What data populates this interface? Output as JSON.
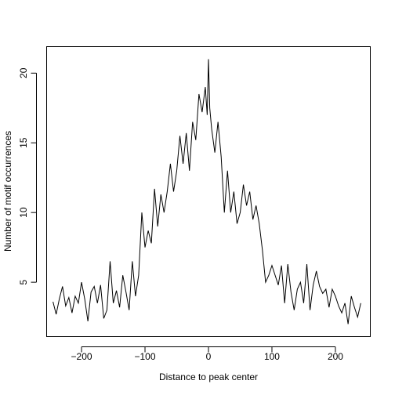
{
  "chart_data": {
    "type": "line",
    "xlabel": "Distance to peak center",
    "ylabel": "Number of motif occurrences",
    "xlim": [
      -255,
      255
    ],
    "ylim": [
      1.1,
      21.9
    ],
    "xticks": [
      -200,
      -100,
      0,
      100,
      200
    ],
    "yticks": [
      5,
      10,
      15,
      20
    ],
    "grid": false,
    "series": [
      {
        "x": [
          -245,
          -240,
          -235,
          -230,
          -225,
          -220,
          -215,
          -210,
          -205,
          -200,
          -195,
          -190,
          -185,
          -180,
          -175,
          -170,
          -165,
          -160,
          -155,
          -150,
          -145,
          -140,
          -135,
          -130,
          -125,
          -120,
          -115,
          -110,
          -105,
          -100,
          -95,
          -90,
          -85,
          -80,
          -75,
          -70,
          -65,
          -60,
          -55,
          -50,
          -45,
          -40,
          -35,
          -30,
          -25,
          -20,
          -15,
          -10,
          -5,
          -2,
          0,
          2,
          5,
          10,
          15,
          20,
          25,
          30,
          35,
          40,
          45,
          50,
          55,
          60,
          65,
          70,
          75,
          80,
          85,
          90,
          95,
          100,
          105,
          110,
          115,
          120,
          125,
          130,
          135,
          140,
          145,
          150,
          155,
          160,
          165,
          170,
          175,
          180,
          185,
          190,
          195,
          200,
          205,
          210,
          215,
          220,
          225,
          230,
          235,
          240
        ],
        "y": [
          3.6,
          2.7,
          3.8,
          4.7,
          3.3,
          3.9,
          2.8,
          4.0,
          3.5,
          5.0,
          3.8,
          2.2,
          4.3,
          4.7,
          3.5,
          4.8,
          2.4,
          3.0,
          6.5,
          3.5,
          4.4,
          3.2,
          5.5,
          4.3,
          3.0,
          6.5,
          4.0,
          5.5,
          10.0,
          7.5,
          8.7,
          7.8,
          11.7,
          9.0,
          11.3,
          10.0,
          11.5,
          13.5,
          11.5,
          13.0,
          15.5,
          13.5,
          15.7,
          13.0,
          16.5,
          15.2,
          18.5,
          17.2,
          19.0,
          17.0,
          21.0,
          17.5,
          16.0,
          14.3,
          16.5,
          14.0,
          10.0,
          13.0,
          10.0,
          11.5,
          9.2,
          10.0,
          12.0,
          10.5,
          11.5,
          9.5,
          10.5,
          9.2,
          7.3,
          5.0,
          5.5,
          6.2,
          5.5,
          4.8,
          6.2,
          3.5,
          6.3,
          4.3,
          3.0,
          4.5,
          5.0,
          3.5,
          6.3,
          3.0,
          4.8,
          5.8,
          4.7,
          4.2,
          4.5,
          3.2,
          4.5,
          4.0,
          3.3,
          2.8,
          3.5,
          2.0,
          4.0,
          3.2,
          2.5,
          3.5
        ]
      }
    ]
  }
}
